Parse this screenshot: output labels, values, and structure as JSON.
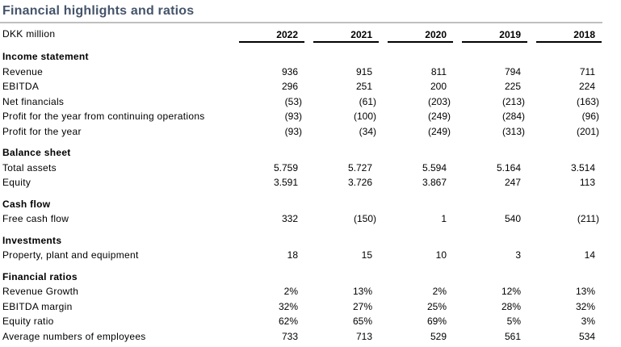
{
  "title": "Financial highlights and ratios",
  "unit_label": "DKK million",
  "years": [
    "2022",
    "2021",
    "2020",
    "2019",
    "2018"
  ],
  "sections": [
    {
      "name": "Income statement",
      "rows": [
        {
          "label": "Revenue",
          "values": [
            "936",
            "915",
            "811",
            "794",
            "711"
          ]
        },
        {
          "label": "EBITDA",
          "values": [
            "296",
            "251",
            "200",
            "225",
            "224"
          ]
        },
        {
          "label": "Net financials",
          "values": [
            "(53)",
            "(61)",
            "(203)",
            "(213)",
            "(163)"
          ]
        },
        {
          "label": "Profit for the year from continuing operations",
          "values": [
            "(93)",
            "(100)",
            "(249)",
            "(284)",
            "(96)"
          ]
        },
        {
          "label": "Profit for the year",
          "values": [
            "(93)",
            "(34)",
            "(249)",
            "(313)",
            "(201)"
          ]
        }
      ]
    },
    {
      "name": "Balance sheet",
      "rows": [
        {
          "label": "Total assets",
          "values": [
            "5.759",
            "5.727",
            "5.594",
            "5.164",
            "3.514"
          ]
        },
        {
          "label": "Equity",
          "values": [
            "3.591",
            "3.726",
            "3.867",
            "247",
            "113"
          ]
        }
      ]
    },
    {
      "name": "Cash flow",
      "rows": [
        {
          "label": "Free cash flow",
          "values": [
            "332",
            "(150)",
            "1",
            "540",
            "(211)"
          ]
        }
      ]
    },
    {
      "name": "Investments",
      "rows": [
        {
          "label": "Property, plant and equipment",
          "values": [
            "18",
            "15",
            "10",
            "3",
            "14"
          ]
        }
      ]
    },
    {
      "name": "Financial ratios",
      "rows": [
        {
          "label": "Revenue Growth",
          "values": [
            "2%",
            "13%",
            "2%",
            "12%",
            "13%"
          ]
        },
        {
          "label": "EBITDA margin",
          "values": [
            "32%",
            "27%",
            "25%",
            "28%",
            "32%"
          ]
        },
        {
          "label": "Equity ratio",
          "values": [
            "62%",
            "65%",
            "69%",
            "5%",
            "3%"
          ]
        },
        {
          "label": "Average numbers of employees",
          "values": [
            "733",
            "713",
            "529",
            "561",
            "534"
          ]
        }
      ]
    }
  ],
  "colors": {
    "title_text": "#44546A",
    "title_rule": "#BFBFBF",
    "body_text": "#000000",
    "header_rule": "#000000",
    "background": "#FFFFFF"
  }
}
